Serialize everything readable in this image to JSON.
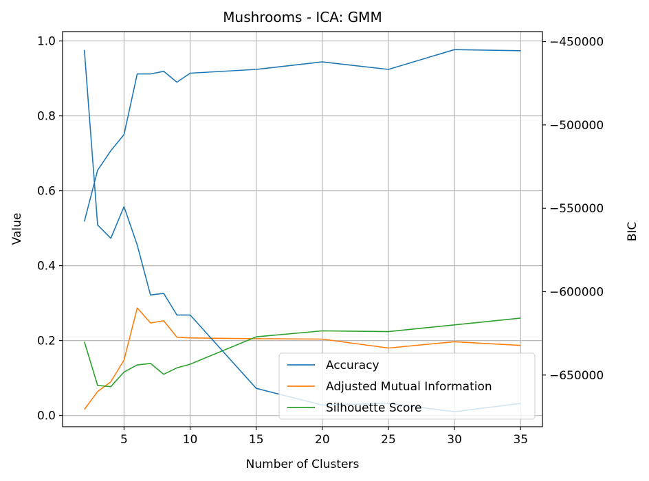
{
  "chart_data": {
    "type": "line",
    "title": "Mushrooms - ICA: GMM",
    "xlabel": "Number of Clusters",
    "ylabel": "Value",
    "y2label": "BIC",
    "x": [
      2,
      3,
      4,
      5,
      6,
      7,
      8,
      9,
      10,
      15,
      20,
      25,
      30,
      35
    ],
    "xlim": [
      0.35,
      36.65
    ],
    "ylim": [
      -0.03,
      1.025
    ],
    "y2lim": [
      -681000,
      -444000
    ],
    "xticks": [
      5,
      10,
      15,
      20,
      25,
      30,
      35
    ],
    "yticks": [
      0.0,
      0.2,
      0.4,
      0.6,
      0.8,
      1.0
    ],
    "yticklabels": [
      "0.0",
      "0.2",
      "0.4",
      "0.6",
      "0.8",
      "1.0"
    ],
    "y2ticks": [
      -450000,
      -500000,
      -550000,
      -600000,
      -650000
    ],
    "y2ticklabels": [
      "−450000",
      "−500000",
      "−550000",
      "−600000",
      "−650000"
    ],
    "grid": true,
    "legend_position": "lower-right",
    "series": [
      {
        "name": "Accuracy",
        "axis": "left",
        "color": "#1f77b4",
        "values": [
          0.518,
          0.655,
          0.707,
          0.75,
          0.912,
          0.912,
          0.919,
          0.89,
          0.914,
          0.924,
          0.944,
          0.924,
          0.977,
          0.974
        ]
      },
      {
        "name": "Adjusted Mutual Information",
        "axis": "left",
        "color": "#ff7f0e",
        "values": [
          0.016,
          0.064,
          0.09,
          0.148,
          0.287,
          0.247,
          0.253,
          0.209,
          0.207,
          0.205,
          0.204,
          0.18,
          0.197,
          0.187
        ]
      },
      {
        "name": "Silhouette Score",
        "axis": "left",
        "color": "#2ca02c",
        "values": [
          0.197,
          0.08,
          0.077,
          0.116,
          0.135,
          0.139,
          0.11,
          0.127,
          0.137,
          0.21,
          0.226,
          0.224,
          0.242,
          0.26
        ]
      },
      {
        "name": "BIC",
        "axis": "right",
        "color": "#1f77b4",
        "values": [
          -455000,
          -560000,
          -568000,
          -549000,
          -572000,
          -602000,
          -601000,
          -614000,
          -614000,
          -658000,
          -668000,
          -667000,
          -672000,
          -667000
        ]
      }
    ],
    "legend": [
      {
        "label": "Accuracy",
        "color": "#1f77b4"
      },
      {
        "label": "Adjusted Mutual Information",
        "color": "#ff7f0e"
      },
      {
        "label": "Silhouette Score",
        "color": "#2ca02c"
      }
    ]
  }
}
